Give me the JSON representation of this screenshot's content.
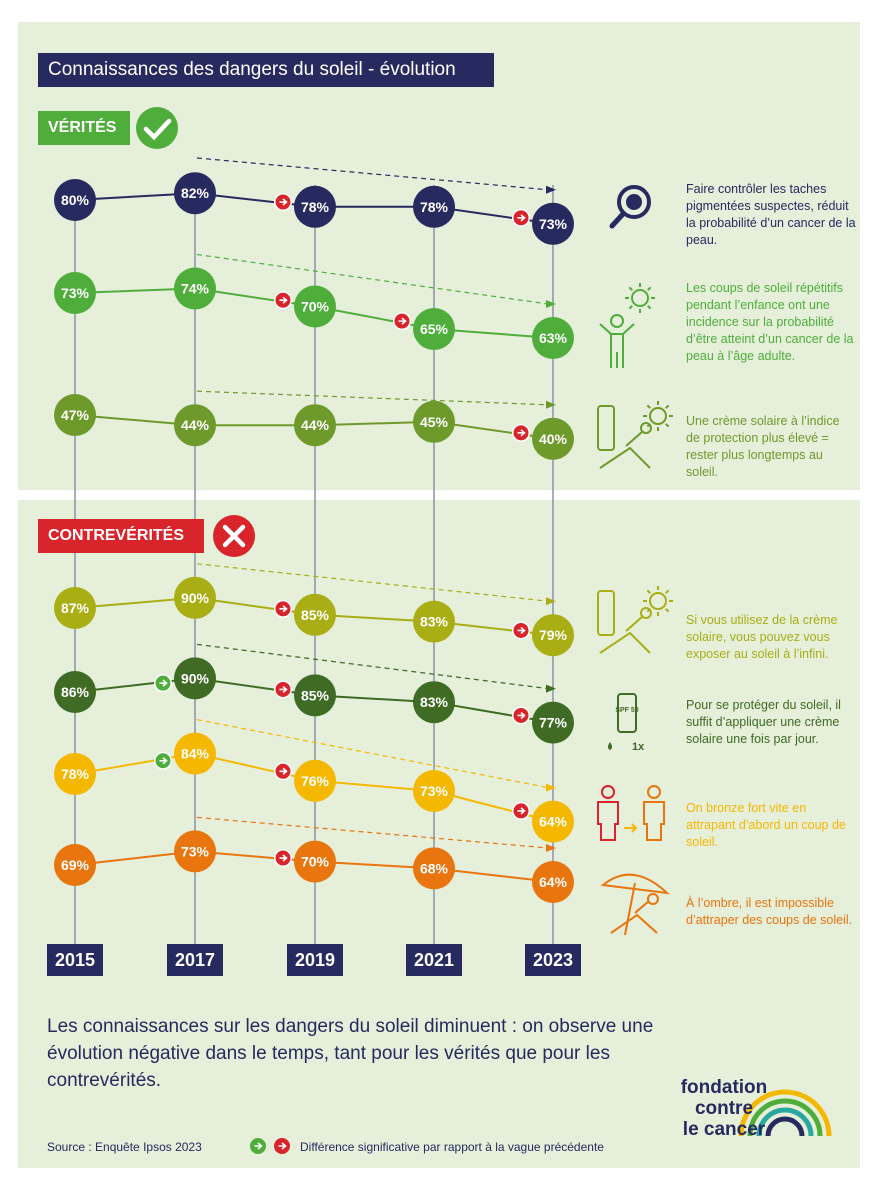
{
  "title": "Connaissances des dangers du soleil - évolution",
  "sections": {
    "verites": "VÉRITÉS",
    "contreverites": "CONTREVÉRITÉS"
  },
  "colors": {
    "navy": "#262a5e",
    "green_bright": "#4fae3b",
    "green_olive": "#6e9a2c",
    "yellow_olive": "#a8ae14",
    "green_dark": "#3f6b24",
    "yellow": "#f5b800",
    "orange": "#e8750d",
    "red": "#d8242a",
    "significant_up": "#4fae3b",
    "significant_down": "#d8242a"
  },
  "chart_data": {
    "type": "line",
    "x": [
      "2015",
      "2017",
      "2019",
      "2021",
      "2023"
    ],
    "series": [
      {
        "name": "Faire contrôler les taches pigmentées suspectes, réduit la probabilité d’un cancer de la peau.",
        "group": "verites",
        "color": "#262a5e",
        "values": [
          80,
          82,
          78,
          78,
          73
        ],
        "significant": [
          "",
          "",
          "down",
          "",
          "down"
        ],
        "icon": "magnifier-icon"
      },
      {
        "name": "Les coups de soleil répétitifs pendant l’enfance ont une incidence sur la probabilité d’être atteint d’un cancer de la peau à l’âge adulte.",
        "group": "verites",
        "color": "#4fae3b",
        "values": [
          73,
          74,
          70,
          65,
          63
        ],
        "significant": [
          "",
          "",
          "down",
          "down",
          ""
        ],
        "icon": "child-sun-icon"
      },
      {
        "name": "Une crème solaire à l’indice de protection plus élevé = rester plus longtemps au soleil.",
        "group": "verites",
        "color": "#6e9a2c",
        "values": [
          47,
          44,
          44,
          45,
          40
        ],
        "significant": [
          "",
          "",
          "",
          "",
          "down"
        ],
        "icon": "sunscreen-lounger-icon"
      },
      {
        "name": "Si vous utilisez de la crème solaire, vous pouvez vous exposer au soleil à l’infini.",
        "group": "contreverites",
        "color": "#a8ae14",
        "values": [
          87,
          90,
          85,
          83,
          79
        ],
        "significant": [
          "",
          "",
          "down",
          "",
          "down"
        ],
        "icon": "sunscreen-lounger-icon"
      },
      {
        "name": "Pour se protéger du soleil, il suffit d’appliquer une crème solaire une fois par jour.",
        "group": "contreverites",
        "color": "#3f6b24",
        "values": [
          86,
          90,
          85,
          83,
          77
        ],
        "significant": [
          "",
          "up",
          "down",
          "",
          "down"
        ],
        "icon": "sunscreen-tube-icon",
        "icon_label": "1x",
        "tube_text": "SPF 50"
      },
      {
        "name": "On bronze fort vite en attrapant d’abord un coup de soleil.",
        "group": "contreverites",
        "color": "#f5b800",
        "values": [
          78,
          84,
          76,
          73,
          64
        ],
        "significant": [
          "",
          "up",
          "down",
          "",
          "down"
        ],
        "icon": "sunburn-person-icon"
      },
      {
        "name": "À l’ombre, il est impossible d’attraper des coups de soleil.",
        "group": "contreverites",
        "color": "#e8750d",
        "values": [
          69,
          73,
          70,
          68,
          64
        ],
        "significant": [
          "",
          "",
          "down",
          "",
          ""
        ],
        "icon": "parasol-icon"
      }
    ],
    "value_suffix": "%"
  },
  "summary": "Les connaissances sur les dangers du soleil diminuent : on observe une évolution négative dans le temps, tant pour les vérités que pour les contrevérités.",
  "source": "Source :  Enquête Ipsos 2023",
  "legend_note": "Différence significative par rapport à la vague précédente",
  "logo": {
    "line1": "fondation",
    "line2": "contre",
    "line3": "le cancer"
  }
}
